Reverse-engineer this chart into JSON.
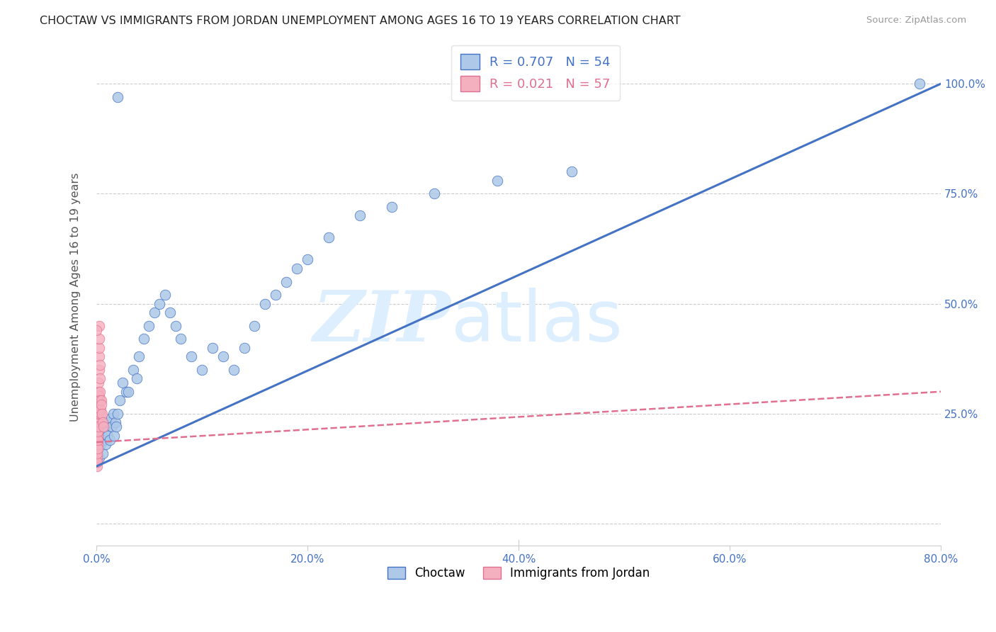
{
  "title": "CHOCTAW VS IMMIGRANTS FROM JORDAN UNEMPLOYMENT AMONG AGES 16 TO 19 YEARS CORRELATION CHART",
  "source": "Source: ZipAtlas.com",
  "ylabel": "Unemployment Among Ages 16 to 19 years",
  "legend_choctaw": "Choctaw",
  "legend_jordan": "Immigrants from Jordan",
  "R_choctaw": 0.707,
  "N_choctaw": 54,
  "R_jordan": 0.021,
  "N_jordan": 57,
  "color_choctaw_fill": "#adc8e8",
  "color_choctaw_edge": "#4472c4",
  "color_jordan_fill": "#f5b0c0",
  "color_jordan_edge": "#e07090",
  "color_line_choctaw": "#4472c4",
  "color_line_jordan": "#e07090",
  "color_text_blue": "#4472c4",
  "color_axis": "#cccccc",
  "watermark": "ZIPatlas",
  "watermark_color": "#ddeeff",
  "choctaw_x": [
    0.002,
    0.003,
    0.004,
    0.005,
    0.006,
    0.007,
    0.008,
    0.009,
    0.01,
    0.011,
    0.012,
    0.013,
    0.014,
    0.015,
    0.016,
    0.017,
    0.018,
    0.019,
    0.02,
    0.022,
    0.025,
    0.028,
    0.03,
    0.035,
    0.038,
    0.04,
    0.045,
    0.05,
    0.055,
    0.06,
    0.065,
    0.07,
    0.075,
    0.08,
    0.09,
    0.1,
    0.11,
    0.12,
    0.13,
    0.14,
    0.15,
    0.16,
    0.17,
    0.18,
    0.19,
    0.2,
    0.22,
    0.25,
    0.28,
    0.32,
    0.38,
    0.45,
    0.78,
    0.02
  ],
  "choctaw_y": [
    0.17,
    0.15,
    0.18,
    0.2,
    0.16,
    0.19,
    0.22,
    0.18,
    0.21,
    0.2,
    0.23,
    0.19,
    0.24,
    0.22,
    0.25,
    0.2,
    0.23,
    0.22,
    0.25,
    0.28,
    0.32,
    0.3,
    0.3,
    0.35,
    0.33,
    0.38,
    0.42,
    0.45,
    0.48,
    0.5,
    0.52,
    0.48,
    0.45,
    0.42,
    0.38,
    0.35,
    0.4,
    0.38,
    0.35,
    0.4,
    0.45,
    0.5,
    0.52,
    0.55,
    0.58,
    0.6,
    0.65,
    0.7,
    0.72,
    0.75,
    0.78,
    0.8,
    1.0,
    0.97
  ],
  "jordan_x": [
    0.0002,
    0.0003,
    0.0004,
    0.0004,
    0.0005,
    0.0005,
    0.0006,
    0.0006,
    0.0007,
    0.0007,
    0.0008,
    0.0008,
    0.0009,
    0.0009,
    0.001,
    0.001,
    0.0011,
    0.0011,
    0.0012,
    0.0012,
    0.0013,
    0.0013,
    0.0014,
    0.0014,
    0.0015,
    0.0015,
    0.0016,
    0.0016,
    0.0017,
    0.0017,
    0.0018,
    0.0018,
    0.0019,
    0.0019,
    0.002,
    0.0021,
    0.0022,
    0.0023,
    0.0024,
    0.0025,
    0.0026,
    0.0027,
    0.0028,
    0.0029,
    0.003,
    0.0031,
    0.0032,
    0.0033,
    0.0035,
    0.0038,
    0.004,
    0.0045,
    0.005,
    0.0055,
    0.006,
    0.0065,
    0.0002
  ],
  "jordan_y": [
    0.18,
    0.16,
    0.2,
    0.14,
    0.22,
    0.13,
    0.19,
    0.15,
    0.21,
    0.17,
    0.23,
    0.14,
    0.2,
    0.18,
    0.16,
    0.22,
    0.19,
    0.24,
    0.18,
    0.22,
    0.25,
    0.2,
    0.28,
    0.17,
    0.26,
    0.19,
    0.28,
    0.22,
    0.3,
    0.21,
    0.27,
    0.24,
    0.29,
    0.22,
    0.28,
    0.25,
    0.3,
    0.27,
    0.32,
    0.29,
    0.35,
    0.38,
    0.4,
    0.42,
    0.45,
    0.36,
    0.33,
    0.3,
    0.28,
    0.25,
    0.26,
    0.28,
    0.27,
    0.25,
    0.23,
    0.22,
    0.44
  ],
  "xlim": [
    0.0,
    0.8
  ],
  "ylim": [
    -0.05,
    1.08
  ],
  "xticks": [
    0.0,
    0.2,
    0.4,
    0.6,
    0.8
  ],
  "yticks": [
    0.0,
    0.25,
    0.5,
    0.75,
    1.0
  ],
  "xticklabels": [
    "0.0%",
    "20.0%",
    "40.0%",
    "60.0%",
    "80.0%"
  ],
  "yticklabels_right": [
    "",
    "25.0%",
    "50.0%",
    "75.0%",
    "100.0%"
  ],
  "line_choctaw_x0": 0.0,
  "line_choctaw_y0": 0.13,
  "line_choctaw_x1": 0.8,
  "line_choctaw_y1": 1.0,
  "line_jordan_x0": 0.0,
  "line_jordan_y0": 0.185,
  "line_jordan_x1": 0.8,
  "line_jordan_y1": 0.3
}
